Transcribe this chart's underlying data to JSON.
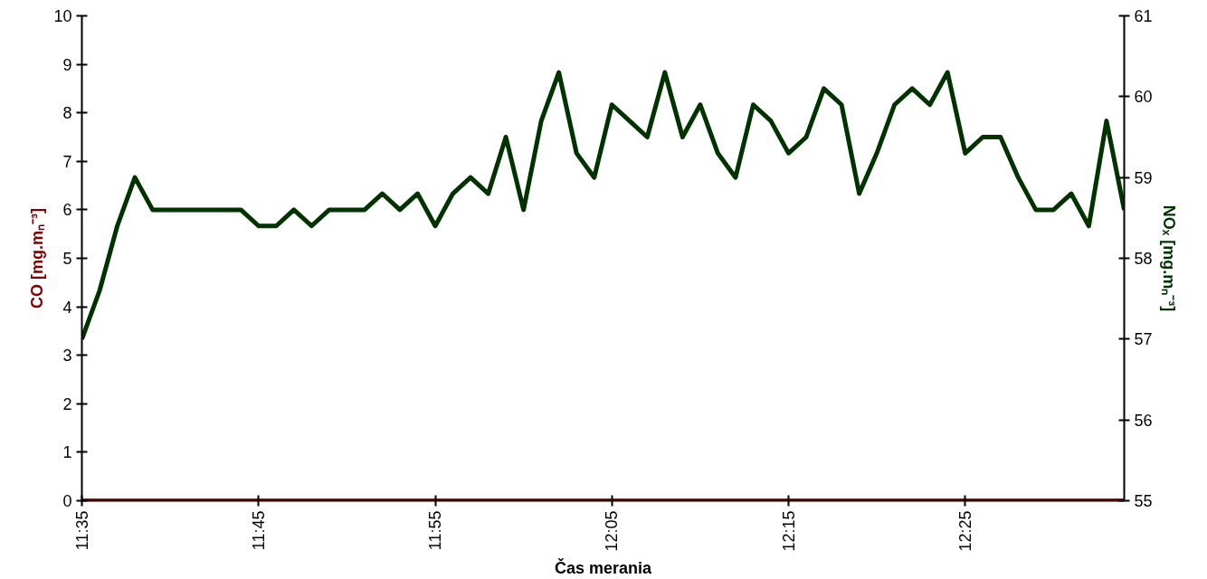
{
  "chart_data": {
    "type": "line",
    "xlabel": "Čas merania",
    "ylabel": "CO [mg.mₙ⁻³]",
    "y2label": "NOₓ [mg.mₙ⁻³]",
    "x": [
      11.5833,
      11.6,
      11.6167,
      11.6333,
      11.65,
      11.6667,
      11.6833,
      11.7,
      11.7167,
      11.7333,
      11.75,
      11.7667,
      11.7833,
      11.8,
      11.8167,
      11.8333,
      11.85,
      11.8667,
      11.8833,
      11.9,
      11.9167,
      11.9333,
      11.95,
      11.9667,
      11.9833,
      12.0,
      12.0167,
      12.0333,
      12.05,
      12.0667,
      12.0833,
      12.1,
      12.1167,
      12.1333,
      12.15,
      12.1667,
      12.1833,
      12.2,
      12.2167,
      12.2333,
      12.25,
      12.2667,
      12.2833,
      12.3,
      12.3167,
      12.3333,
      12.35,
      12.3667,
      12.3833,
      12.4,
      12.4167,
      12.4333,
      12.45,
      12.4667,
      12.4833,
      12.5,
      12.5167,
      12.5333,
      12.55,
      12.5667
    ],
    "series": [
      {
        "color": "#c00000",
        "values": [
          0,
          0,
          0,
          0,
          0,
          0,
          0,
          0,
          0,
          0,
          0,
          0,
          0,
          0,
          0,
          0,
          0,
          0,
          0,
          0,
          0,
          0,
          0,
          0,
          0,
          0,
          0,
          0,
          0,
          0,
          0,
          0,
          0,
          0,
          0,
          0,
          0,
          0,
          0,
          0,
          0,
          0,
          0,
          0,
          0,
          0,
          0,
          0,
          0,
          0,
          0,
          0,
          0,
          0,
          0,
          0,
          0,
          0,
          0,
          0
        ]
      },
      {
        "color": "#003300",
        "axis": "y2",
        "values": [
          57.0,
          57.6,
          58.4,
          59.0,
          58.6,
          58.6,
          58.6,
          58.6,
          58.6,
          58.6,
          58.4,
          58.4,
          58.6,
          58.4,
          58.6,
          58.6,
          58.6,
          58.8,
          58.6,
          58.8,
          58.4,
          58.8,
          59.0,
          58.8,
          59.5,
          58.6,
          59.7,
          60.3,
          59.3,
          59.0,
          59.9,
          59.7,
          59.5,
          60.3,
          59.5,
          59.9,
          59.3,
          59.0,
          59.9,
          59.7,
          59.3,
          59.5,
          60.1,
          59.9,
          58.8,
          59.3,
          59.9,
          60.1,
          59.9,
          60.3,
          59.3,
          59.5,
          59.5,
          59.0,
          58.6,
          58.6,
          58.8,
          58.4,
          59.7,
          58.6
        ]
      }
    ],
    "xlim": [
      11.5833,
      12.5667
    ],
    "xticks": [
      {
        "value": 11.5833,
        "label": "11:35"
      },
      {
        "value": 11.75,
        "label": "11:45"
      },
      {
        "value": 11.9167,
        "label": "11:55"
      },
      {
        "value": 12.0833,
        "label": "12:05"
      },
      {
        "value": 12.25,
        "label": "12:15"
      },
      {
        "value": 12.4167,
        "label": "12:25"
      }
    ],
    "ylim": [
      0,
      10
    ],
    "yticks": [
      0,
      1,
      2,
      3,
      4,
      5,
      6,
      7,
      8,
      9,
      10
    ],
    "y2lim": [
      55,
      61
    ],
    "y2ticks": [
      55,
      56,
      57,
      58,
      59,
      60,
      61
    ],
    "grid": false
  }
}
